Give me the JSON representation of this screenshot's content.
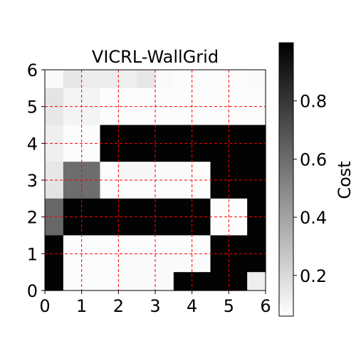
{
  "chart_data": {
    "type": "heatmap",
    "title": "VICRL-WallGrid",
    "xlabel": "",
    "ylabel": "",
    "colorbar_label": "Cost",
    "colormap": "gray_r",
    "xlim": [
      0,
      6
    ],
    "ylim": [
      0,
      6
    ],
    "x_ticks": [
      "0",
      "1",
      "2",
      "3",
      "4",
      "5",
      "6"
    ],
    "y_ticks": [
      "0",
      "1",
      "2",
      "3",
      "4",
      "5",
      "6"
    ],
    "colorbar_range": [
      0.06,
      1.0
    ],
    "colorbar_ticks": [
      "0.2",
      "0.4",
      "0.6",
      "0.8"
    ],
    "colorbar_tick_values": [
      0.2,
      0.4,
      0.6,
      0.8
    ],
    "grid": true,
    "grid_color": "#ff0000",
    "grid_style": "dashed",
    "rows_top_to_bottom": [
      [
        0.08,
        0.15,
        0.13,
        0.13,
        0.12,
        0.15,
        0.08,
        0.07,
        0.07,
        0.07,
        0.07,
        0.08
      ],
      [
        0.16,
        0.1,
        0.1,
        0.07,
        0.07,
        0.07,
        0.07,
        0.07,
        0.07,
        0.07,
        0.07,
        0.07
      ],
      [
        0.15,
        0.1,
        0.1,
        0.07,
        0.07,
        0.07,
        0.07,
        0.07,
        0.07,
        0.07,
        0.07,
        0.07
      ],
      [
        0.12,
        0.07,
        0.07,
        0.99,
        0.99,
        0.99,
        0.99,
        0.99,
        0.99,
        0.99,
        0.99,
        0.99
      ],
      [
        0.12,
        0.07,
        0.07,
        0.99,
        0.99,
        0.99,
        0.99,
        0.99,
        0.99,
        0.99,
        0.99,
        0.99
      ],
      [
        0.15,
        0.6,
        0.6,
        0.07,
        0.09,
        0.09,
        0.08,
        0.08,
        0.07,
        0.99,
        0.99,
        0.99
      ],
      [
        0.16,
        0.6,
        0.6,
        0.07,
        0.07,
        0.07,
        0.07,
        0.07,
        0.07,
        0.99,
        0.99,
        0.99
      ],
      [
        0.62,
        0.99,
        0.99,
        0.99,
        0.99,
        0.99,
        0.99,
        0.99,
        0.99,
        0.07,
        0.07,
        0.99
      ],
      [
        0.62,
        0.99,
        0.99,
        0.99,
        0.99,
        0.99,
        0.99,
        0.99,
        0.99,
        0.07,
        0.07,
        0.99
      ],
      [
        0.99,
        0.07,
        0.07,
        0.07,
        0.07,
        0.07,
        0.07,
        0.07,
        0.07,
        0.99,
        0.99,
        0.99
      ],
      [
        0.99,
        0.07,
        0.07,
        0.07,
        0.08,
        0.08,
        0.08,
        0.08,
        0.08,
        0.99,
        0.99,
        0.99
      ],
      [
        0.99,
        0.07,
        0.07,
        0.07,
        0.08,
        0.08,
        0.08,
        0.99,
        0.99,
        0.99,
        0.99,
        0.12
      ]
    ]
  }
}
